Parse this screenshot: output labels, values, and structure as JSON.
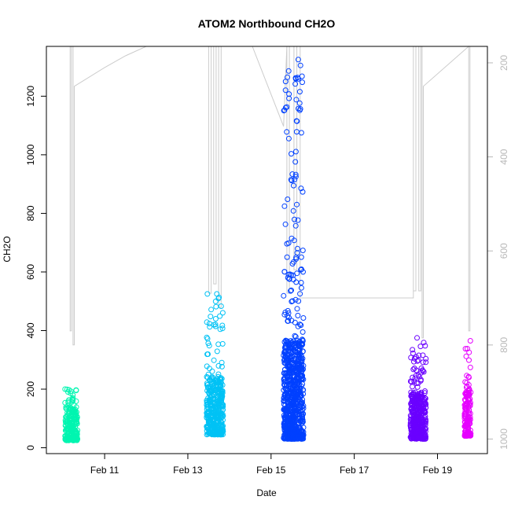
{
  "chart_data": {
    "type": "scatter",
    "title": "ATOM2 Northbound CH2O",
    "xlabel": "Date",
    "ylabel": "CH2O",
    "x_ticks": [
      "Feb 11",
      "Feb 13",
      "Feb 15",
      "Feb 17",
      "Feb 19"
    ],
    "x_tick_days": [
      11,
      13,
      15,
      17,
      19
    ],
    "xlim_days": [
      9.6,
      20.2
    ],
    "y_ticks": [
      0,
      200,
      400,
      600,
      800,
      1000,
      1200
    ],
    "ylim": [
      -20,
      1370
    ],
    "right_axis": {
      "label": "",
      "ticks": [
        200,
        400,
        600,
        800,
        1000
      ],
      "ylim": [
        1031,
        165
      ],
      "reversed": true,
      "color": "#b8b8b8"
    },
    "altitude_trace_color": "#cccccc",
    "altitude_trace": [
      {
        "day": 10.17,
        "p": 165
      },
      {
        "day": 10.17,
        "p": 770
      },
      {
        "day": 10.2,
        "p": 770
      },
      {
        "day": 10.2,
        "p": 165
      },
      {
        "day": 10.24,
        "p": 165
      },
      {
        "day": 10.24,
        "p": 800
      },
      {
        "day": 10.27,
        "p": 800
      },
      {
        "day": 10.27,
        "p": 250
      },
      {
        "day": 11.0,
        "p": 210
      },
      {
        "day": 11.5,
        "p": 185
      },
      {
        "day": 12.0,
        "p": 165
      },
      {
        "day": 13.5,
        "p": 165
      },
      {
        "day": 13.5,
        "p": 690
      },
      {
        "day": 13.56,
        "p": 690
      },
      {
        "day": 13.56,
        "p": 165
      },
      {
        "day": 13.62,
        "p": 165
      },
      {
        "day": 13.62,
        "p": 670
      },
      {
        "day": 13.68,
        "p": 670
      },
      {
        "day": 13.68,
        "p": 165
      },
      {
        "day": 13.74,
        "p": 165
      },
      {
        "day": 13.74,
        "p": 720
      },
      {
        "day": 13.8,
        "p": 720
      },
      {
        "day": 13.8,
        "p": 165
      },
      {
        "day": 14.55,
        "p": 165
      },
      {
        "day": 15.3,
        "p": 335
      },
      {
        "day": 15.38,
        "p": 165
      },
      {
        "day": 15.38,
        "p": 690
      },
      {
        "day": 15.44,
        "p": 690
      },
      {
        "day": 15.44,
        "p": 165
      },
      {
        "day": 15.55,
        "p": 165
      },
      {
        "day": 15.55,
        "p": 640
      },
      {
        "day": 15.62,
        "p": 640
      },
      {
        "day": 15.62,
        "p": 165
      },
      {
        "day": 15.7,
        "p": 165
      },
      {
        "day": 15.7,
        "p": 700
      },
      {
        "day": 15.76,
        "p": 700
      },
      {
        "day": 18.0,
        "p": 700
      },
      {
        "day": 18.42,
        "p": 700
      },
      {
        "day": 18.42,
        "p": 165
      },
      {
        "day": 18.42,
        "p": 685
      },
      {
        "day": 18.48,
        "p": 685
      },
      {
        "day": 18.48,
        "p": 165
      },
      {
        "day": 18.55,
        "p": 165
      },
      {
        "day": 18.55,
        "p": 685
      },
      {
        "day": 18.6,
        "p": 685
      },
      {
        "day": 18.6,
        "p": 165
      },
      {
        "day": 18.63,
        "p": 165
      },
      {
        "day": 18.63,
        "p": 785
      },
      {
        "day": 18.66,
        "p": 785
      },
      {
        "day": 18.66,
        "p": 250
      },
      {
        "day": 19.75,
        "p": 165
      },
      {
        "day": 19.75,
        "p": 770
      },
      {
        "day": 19.78,
        "p": 770
      },
      {
        "day": 19.78,
        "p": 165
      }
    ],
    "flights": [
      {
        "day_start": 10.05,
        "day_end": 10.35,
        "y_min": 25,
        "y_max": 200,
        "y_typical": 90,
        "color": "#00f5b0",
        "n_points": 220
      },
      {
        "day_start": 13.45,
        "day_end": 13.85,
        "y_min": 45,
        "y_max": 525,
        "y_typical": 150,
        "color": "#00c2f5",
        "n_points": 420
      },
      {
        "day_start": 15.3,
        "day_end": 15.78,
        "y_min": 30,
        "y_max": 1325,
        "y_typical": 230,
        "color": "#0040ff",
        "n_points": 820
      },
      {
        "day_start": 18.35,
        "day_end": 18.72,
        "y_min": 30,
        "y_max": 375,
        "y_typical": 120,
        "color": "#6a00ff",
        "n_points": 380
      },
      {
        "day_start": 19.65,
        "day_end": 19.8,
        "y_min": 40,
        "y_max": 365,
        "y_typical": 130,
        "color": "#e600ff",
        "n_points": 160
      }
    ]
  }
}
